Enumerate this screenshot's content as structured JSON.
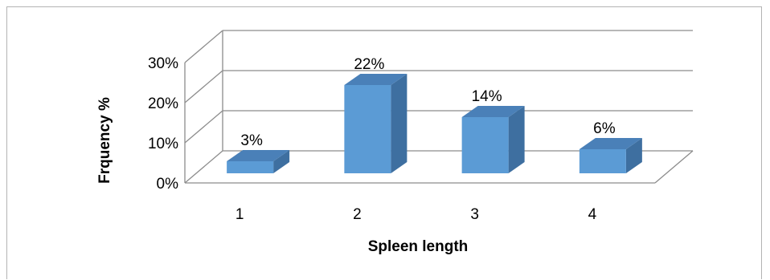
{
  "chart_data": {
    "type": "bar",
    "style": "3d-column",
    "categories": [
      "1",
      "2",
      "3",
      "4"
    ],
    "values": [
      3,
      22,
      14,
      6
    ],
    "data_labels": [
      "3%",
      "22%",
      "14%",
      "6%"
    ],
    "xlabel": "Spleen length",
    "ylabel": "Frquency %",
    "ylim": [
      0,
      30
    ],
    "yticks": [
      "0%",
      "10%",
      "20%",
      "30%"
    ],
    "grid": true,
    "legend": "none",
    "colors": {
      "bar_front": "#5b9bd5",
      "bar_side": "#3e6fa0",
      "bar_top": "#4a80b8",
      "grid": "#8c8c8c"
    }
  }
}
